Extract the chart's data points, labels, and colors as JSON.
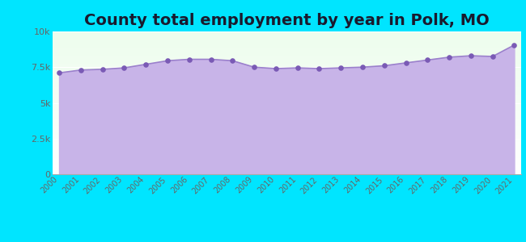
{
  "title": "County total employment by year in Polk, MO",
  "years": [
    2000,
    2001,
    2002,
    2003,
    2004,
    2005,
    2006,
    2007,
    2008,
    2009,
    2010,
    2011,
    2012,
    2013,
    2014,
    2015,
    2016,
    2017,
    2018,
    2019,
    2020,
    2021
  ],
  "values": [
    7100,
    7300,
    7350,
    7450,
    7700,
    7950,
    8050,
    8050,
    7950,
    7500,
    7400,
    7450,
    7400,
    7450,
    7500,
    7600,
    7800,
    8000,
    8200,
    8300,
    8250,
    9050
  ],
  "ylim": [
    0,
    10000
  ],
  "yticks": [
    0,
    2500,
    5000,
    7500,
    10000
  ],
  "fill_color": "#c8b4e8",
  "line_color": "#9b80cc",
  "dot_color": "#7a5ab5",
  "background_color": "#00e5ff",
  "title_fontsize": 14,
  "title_color": "#1a1a2e",
  "tick_label_color": "#666666",
  "plot_bg_top": "#edfded",
  "plot_bg_bottom": "#ffffff"
}
